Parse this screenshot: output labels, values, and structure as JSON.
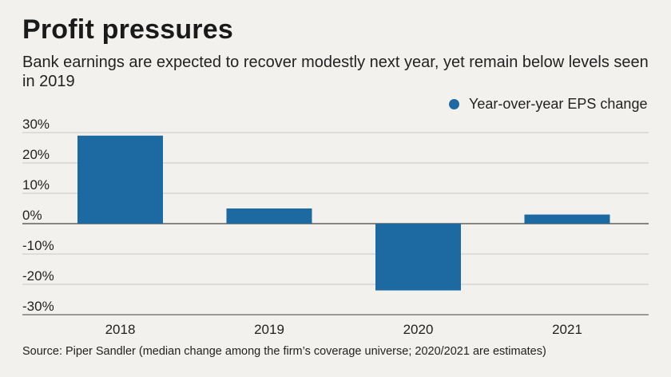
{
  "chart_data": {
    "type": "bar",
    "title": "Profit pressures",
    "subtitle": "Bank earnings are expected to recover modestly next year, yet remain below levels seen in 2019",
    "categories": [
      "2018",
      "2019",
      "2020",
      "2021"
    ],
    "series": [
      {
        "name": "Year-over-year EPS change",
        "values": [
          29,
          5,
          -22,
          3
        ]
      }
    ],
    "ylim": [
      -30,
      30
    ],
    "yticks": [
      "30%",
      "20%",
      "10%",
      "0%",
      "-10%",
      "-20%",
      "-30%"
    ],
    "ytick_values": [
      30,
      20,
      10,
      0,
      -10,
      -20,
      -30
    ],
    "xlabel": "",
    "ylabel": "",
    "grid": true,
    "legend_position": "top-right",
    "colors": {
      "bar": "#1c6aa1",
      "grid": "#c9c9c9",
      "axis": "#444444"
    }
  },
  "source": "Source: Piper Sandler (median change among the firm’s coverage universe; 2020/2021 are estimates)"
}
